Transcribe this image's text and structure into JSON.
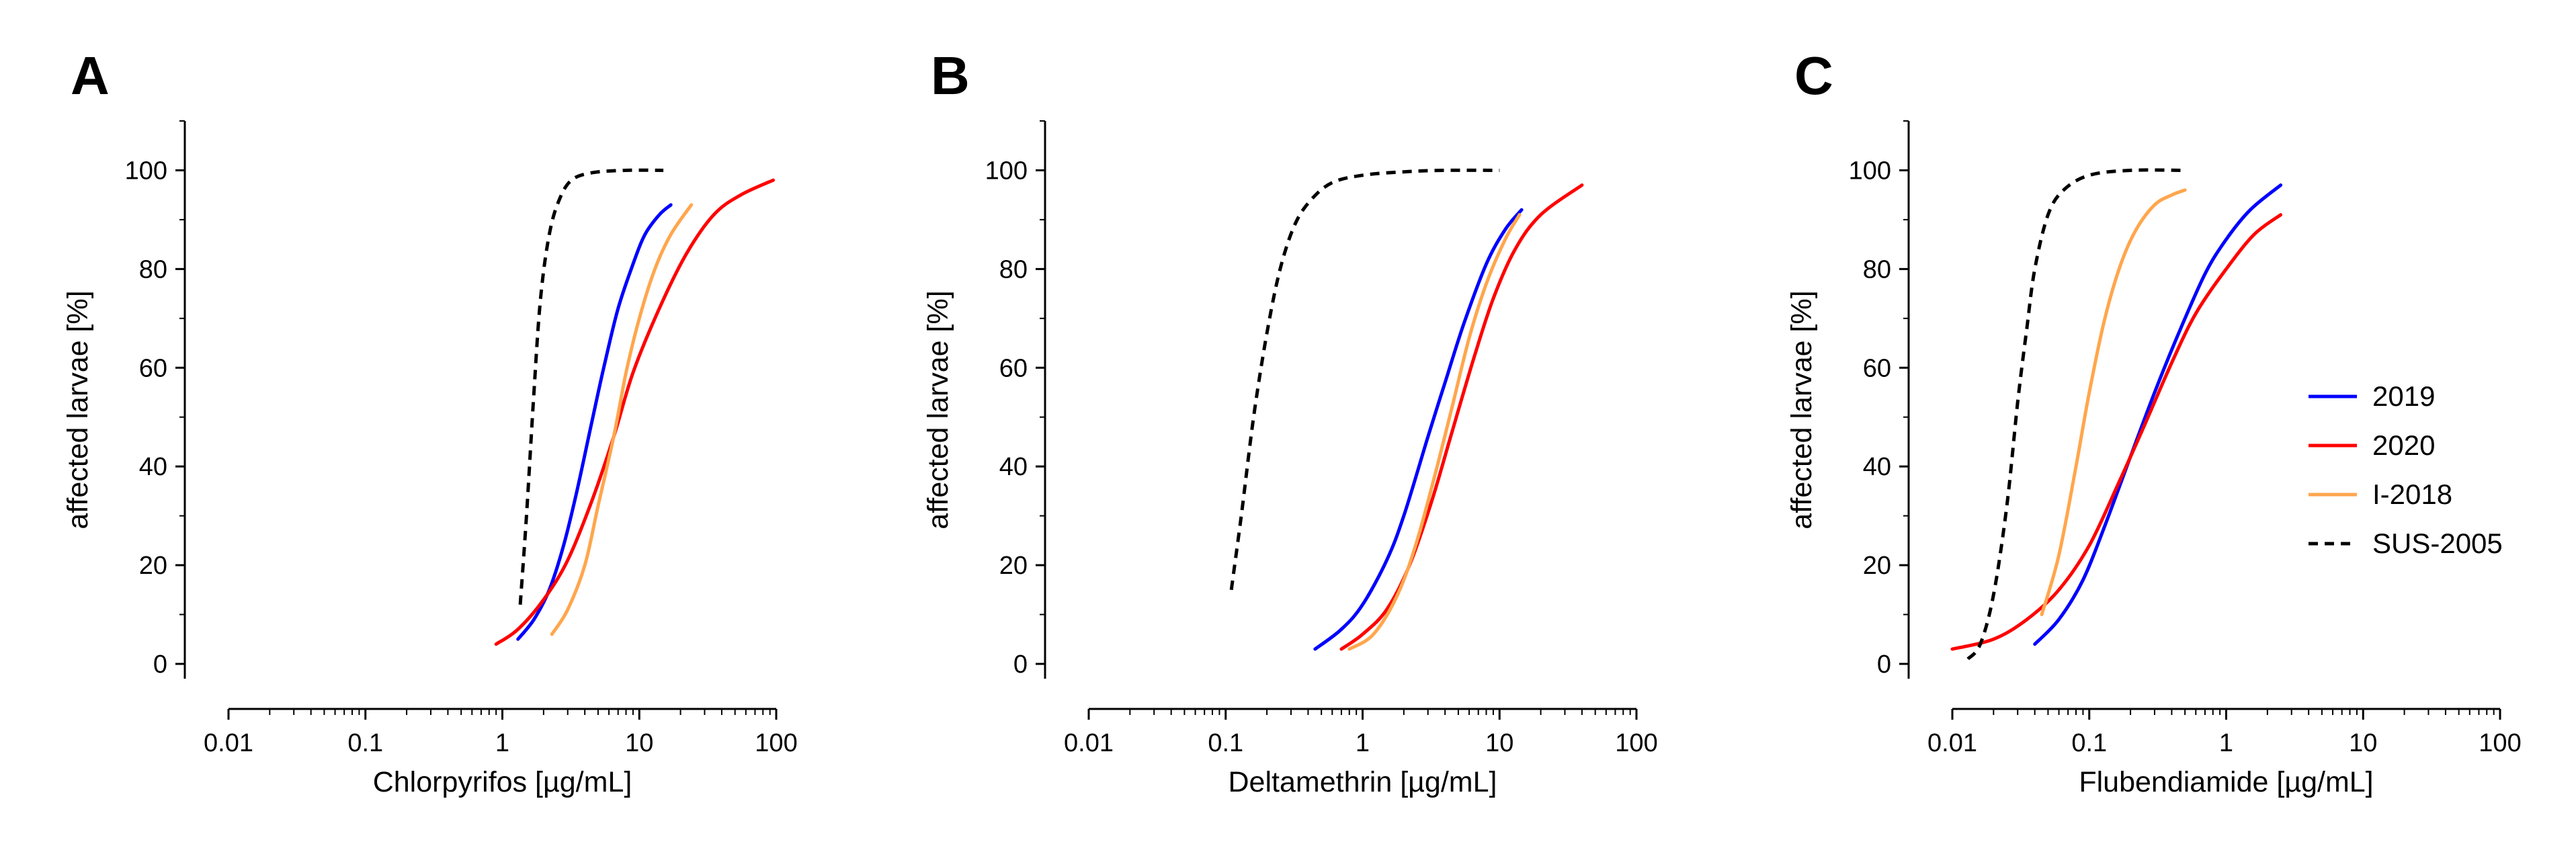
{
  "figure": {
    "legend": {
      "placement": "right",
      "entries": [
        {
          "name": "2019",
          "color": "#0000ff",
          "dash": "solid"
        },
        {
          "name": "2020",
          "color": "#ff0000",
          "dash": "solid"
        },
        {
          "name": "I-2018",
          "color": "#ffa64d",
          "dash": "solid"
        },
        {
          "name": "SUS-2005",
          "color": "#000000",
          "dash": "dashed"
        }
      ]
    }
  },
  "chart_data": [
    {
      "type": "line",
      "panel_label": "A",
      "xlabel": "Chlorpyrifos [µg/mL]",
      "ylabel": "affected larvae [%]",
      "xscale": "log",
      "xlim": [
        0.01,
        100
      ],
      "ylim": [
        -3,
        110
      ],
      "xticks": [
        "0.01",
        "0.1",
        "1",
        "10",
        "100"
      ],
      "yticks": [
        "0",
        "20",
        "40",
        "60",
        "80",
        "100"
      ],
      "series": [
        {
          "name": "2019",
          "color": "#0000ff",
          "dash": "solid",
          "x": [
            1.3,
            1.7,
            2.2,
            2.8,
            3.5,
            4.5,
            5.5,
            7,
            9,
            11,
            14,
            17
          ],
          "y": [
            5,
            9,
            15,
            24,
            35,
            49,
            60,
            72,
            81,
            87,
            91,
            93
          ]
        },
        {
          "name": "2020",
          "color": "#ff0000",
          "dash": "solid",
          "x": [
            0.9,
            1.3,
            2,
            3,
            4.5,
            6.5,
            9,
            14,
            22,
            35,
            55,
            95
          ],
          "y": [
            4,
            7,
            13,
            21,
            33,
            46,
            59,
            72,
            83,
            91,
            95,
            98
          ]
        },
        {
          "name": "I-2018",
          "color": "#ffa64d",
          "dash": "solid",
          "x": [
            2.3,
            3,
            4,
            5,
            6.5,
            8,
            10,
            13,
            17,
            24
          ],
          "y": [
            6,
            11,
            20,
            32,
            46,
            59,
            70,
            80,
            87,
            93
          ]
        },
        {
          "name": "SUS-2005",
          "color": "#000000",
          "dash": "dashed",
          "x": [
            1.35,
            1.5,
            1.7,
            1.9,
            2.2,
            2.6,
            3.2,
            4.5,
            8,
            15
          ],
          "y": [
            12,
            30,
            55,
            74,
            87,
            94,
            98,
            99.5,
            100,
            100
          ]
        }
      ]
    },
    {
      "type": "line",
      "panel_label": "B",
      "xlabel": "Deltamethrin [µg/mL]",
      "ylabel": "affected larvae [%]",
      "xscale": "log",
      "xlim": [
        0.01,
        100
      ],
      "ylim": [
        -3,
        110
      ],
      "xticks": [
        "0.01",
        "0.1",
        "1",
        "10",
        "100"
      ],
      "yticks": [
        "0",
        "20",
        "40",
        "60",
        "80",
        "100"
      ],
      "series": [
        {
          "name": "2019",
          "color": "#0000ff",
          "dash": "solid",
          "x": [
            0.45,
            0.7,
            1,
            1.5,
            2,
            3,
            4,
            5.5,
            8,
            11,
            14.5
          ],
          "y": [
            3,
            7,
            12,
            21,
            30,
            46,
            57,
            69,
            81,
            88,
            92
          ]
        },
        {
          "name": "2020",
          "color": "#ff0000",
          "dash": "solid",
          "x": [
            0.7,
            1,
            1.5,
            2.2,
            3.2,
            4.5,
            6.5,
            9,
            13,
            20,
            40
          ],
          "y": [
            3,
            6,
            11,
            20,
            33,
            47,
            62,
            74,
            84,
            91,
            97
          ]
        },
        {
          "name": "I-2018",
          "color": "#ffa64d",
          "dash": "solid",
          "x": [
            0.8,
            1.2,
            1.8,
            2.5,
            3.5,
            4.5,
            6,
            8,
            11,
            14
          ],
          "y": [
            3,
            6,
            14,
            25,
            40,
            52,
            66,
            77,
            86,
            91
          ]
        },
        {
          "name": "SUS-2005",
          "color": "#000000",
          "dash": "dashed",
          "x": [
            0.11,
            0.13,
            0.16,
            0.2,
            0.25,
            0.32,
            0.42,
            0.6,
            1,
            2,
            4,
            10
          ],
          "y": [
            15,
            30,
            50,
            67,
            80,
            89,
            94,
            97.5,
            99,
            99.7,
            100,
            100
          ]
        }
      ]
    },
    {
      "type": "line",
      "panel_label": "C",
      "xlabel": "Flubendiamide [µg/mL]",
      "ylabel": "affected larvae [%]",
      "xscale": "log",
      "xlim": [
        0.01,
        100
      ],
      "ylim": [
        -3,
        110
      ],
      "xticks": [
        "0.01",
        "0.1",
        "1",
        "10",
        "100"
      ],
      "yticks": [
        "0",
        "20",
        "40",
        "60",
        "80",
        "100"
      ],
      "series": [
        {
          "name": "2019",
          "color": "#0000ff",
          "dash": "solid",
          "x": [
            0.04,
            0.06,
            0.09,
            0.13,
            0.2,
            0.3,
            0.45,
            0.7,
            1,
            1.5,
            2.5
          ],
          "y": [
            4,
            9,
            17,
            28,
            42,
            55,
            67,
            79,
            86,
            92,
            97
          ]
        },
        {
          "name": "2020",
          "color": "#ff0000",
          "dash": "solid",
          "x": [
            0.01,
            0.02,
            0.035,
            0.06,
            0.1,
            0.16,
            0.25,
            0.4,
            0.6,
            1,
            1.6,
            2.5
          ],
          "y": [
            3,
            5,
            9,
            15,
            24,
            36,
            48,
            61,
            71,
            80,
            87,
            91
          ]
        },
        {
          "name": "I-2018",
          "color": "#ffa64d",
          "dash": "solid",
          "x": [
            0.045,
            0.06,
            0.08,
            0.1,
            0.13,
            0.17,
            0.22,
            0.3,
            0.4,
            0.5
          ],
          "y": [
            10,
            22,
            40,
            55,
            70,
            81,
            88,
            93,
            95,
            96
          ]
        },
        {
          "name": "SUS-2005",
          "color": "#000000",
          "dash": "dashed",
          "x": [
            0.013,
            0.016,
            0.02,
            0.025,
            0.03,
            0.035,
            0.04,
            0.05,
            0.065,
            0.1,
            0.2,
            0.5
          ],
          "y": [
            1,
            4,
            14,
            32,
            53,
            68,
            80,
            91,
            96,
            99,
            100,
            100
          ]
        }
      ]
    }
  ]
}
